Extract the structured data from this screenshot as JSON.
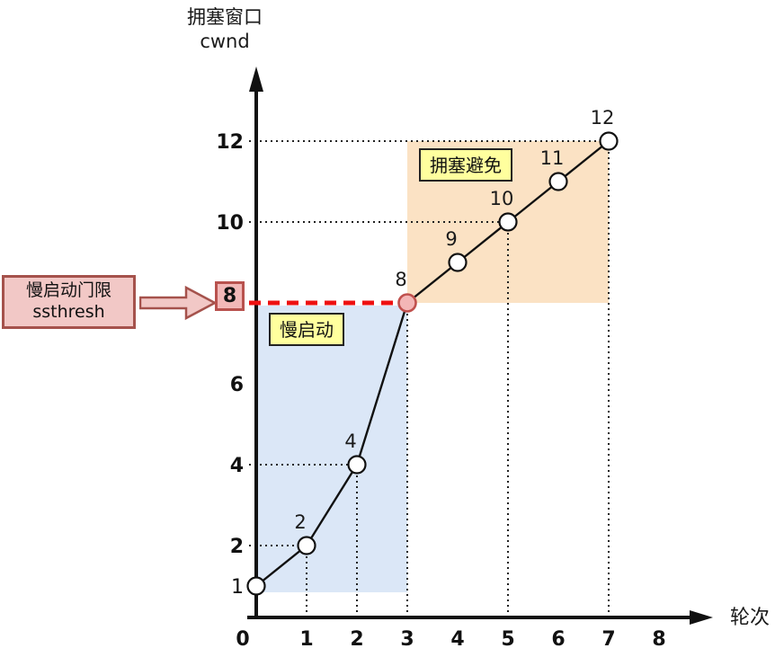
{
  "title": {
    "line1": "拥塞窗口",
    "line2": "cwnd"
  },
  "x_axis_name": "轮次",
  "threshold": {
    "callout_line1": "慢启动门限",
    "callout_line2": "ssthresh",
    "value_label": "8"
  },
  "region_labels": {
    "slow_start": "慢启动",
    "congestion_avoidance": "拥塞避免"
  },
  "colors": {
    "slow_start_fill": "#dbe7f7",
    "congestion_avoidance_fill": "#fbe2c4",
    "threshold_line": "#ee1111",
    "callout_fill": "#f2c8c6",
    "callout_border": "#a5524c",
    "badge_fill": "#f2b8b8",
    "badge_border": "#b8524e",
    "highlight_label_fill": "#ffff9e",
    "point_fill": "#ffffff",
    "threshold_point_fill": "#f3b6b6",
    "threshold_point_border": "#c0504d",
    "curve_color": "#111111",
    "guide_color": "#222222",
    "axis_color": "#111111"
  },
  "chart_data": {
    "type": "line",
    "title": "拥塞窗口 cwnd",
    "xlabel": "轮次",
    "ylabel": "拥塞窗口 cwnd",
    "x": [
      0,
      1,
      2,
      3,
      4,
      5,
      6,
      7
    ],
    "y": [
      1,
      2,
      4,
      8,
      9,
      10,
      11,
      12
    ],
    "point_labels": [
      "",
      "2",
      "4",
      "8",
      "9",
      "10",
      "11",
      "12"
    ],
    "x_ticks": [
      0,
      1,
      2,
      3,
      4,
      5,
      6,
      7,
      8
    ],
    "y_ticks": [
      1,
      2,
      4,
      6,
      8,
      10,
      12
    ],
    "xlim": [
      0,
      8.5
    ],
    "ylim": [
      0,
      13
    ],
    "ssthresh": 8,
    "legend": "none",
    "grid": "dotted guide lines only at marked points",
    "h_guides": [
      2,
      4,
      10,
      12
    ],
    "v_guides": [
      1,
      2,
      3,
      5,
      7
    ],
    "regions": [
      {
        "label": "慢启动",
        "phase": "slow start",
        "x0": 0,
        "x1": 3,
        "y0": 1,
        "y1": 8
      },
      {
        "label": "拥塞避免",
        "phase": "congestion avoidance",
        "x0": 3,
        "x1": 7,
        "y0": 8,
        "y1": 12
      }
    ]
  }
}
